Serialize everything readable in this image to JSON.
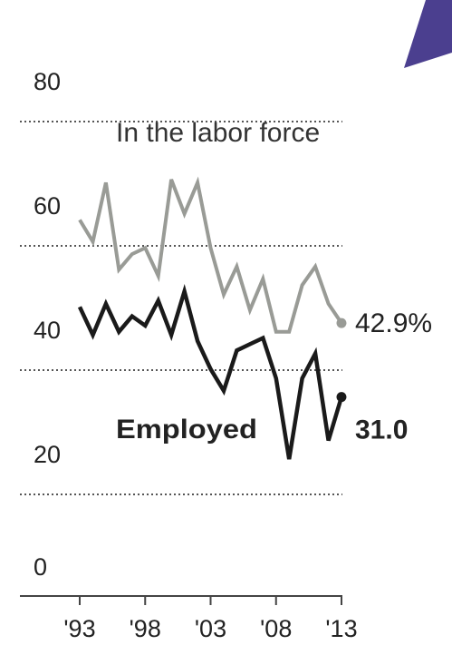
{
  "corner_badge": {
    "color": "#4b3f8f"
  },
  "chart_data": {
    "type": "line",
    "ylim": [
      0,
      80
    ],
    "yticks": [
      "0",
      "20",
      "40",
      "60",
      "80"
    ],
    "xlim": [
      1993,
      2013
    ],
    "xticks": [
      "'93",
      "'98",
      "'03",
      "'08",
      "'13"
    ],
    "grid": true,
    "series": [
      {
        "name": "In the labor force",
        "color": "#999b96",
        "end_label": "42.9%",
        "x": [
          1993,
          1994,
          1995,
          1996,
          1997,
          1998,
          1999,
          2000,
          2001,
          2002,
          2003,
          2004,
          2005,
          2006,
          2007,
          2008,
          2009,
          2010,
          2011,
          2012,
          2013
        ],
        "y": [
          59.5,
          56,
          65.5,
          51.5,
          54,
          55,
          50.5,
          66,
          60.5,
          65.5,
          55,
          47.5,
          52,
          45,
          50,
          41.5,
          41.5,
          49,
          52,
          46,
          42.9
        ]
      },
      {
        "name": "Employed",
        "color": "#1a1a1a",
        "end_label": "31.0",
        "x": [
          1993,
          1994,
          1995,
          1996,
          1997,
          1998,
          1999,
          2000,
          2001,
          2002,
          2003,
          2004,
          2005,
          2006,
          2007,
          2008,
          2009,
          2010,
          2011,
          2012,
          2013
        ],
        "y": [
          45.5,
          41,
          46,
          41.5,
          44,
          42.5,
          46.5,
          41,
          48,
          40,
          35.5,
          32,
          38.5,
          39.5,
          40.5,
          34,
          21,
          34,
          38,
          24,
          31.0
        ]
      }
    ]
  }
}
